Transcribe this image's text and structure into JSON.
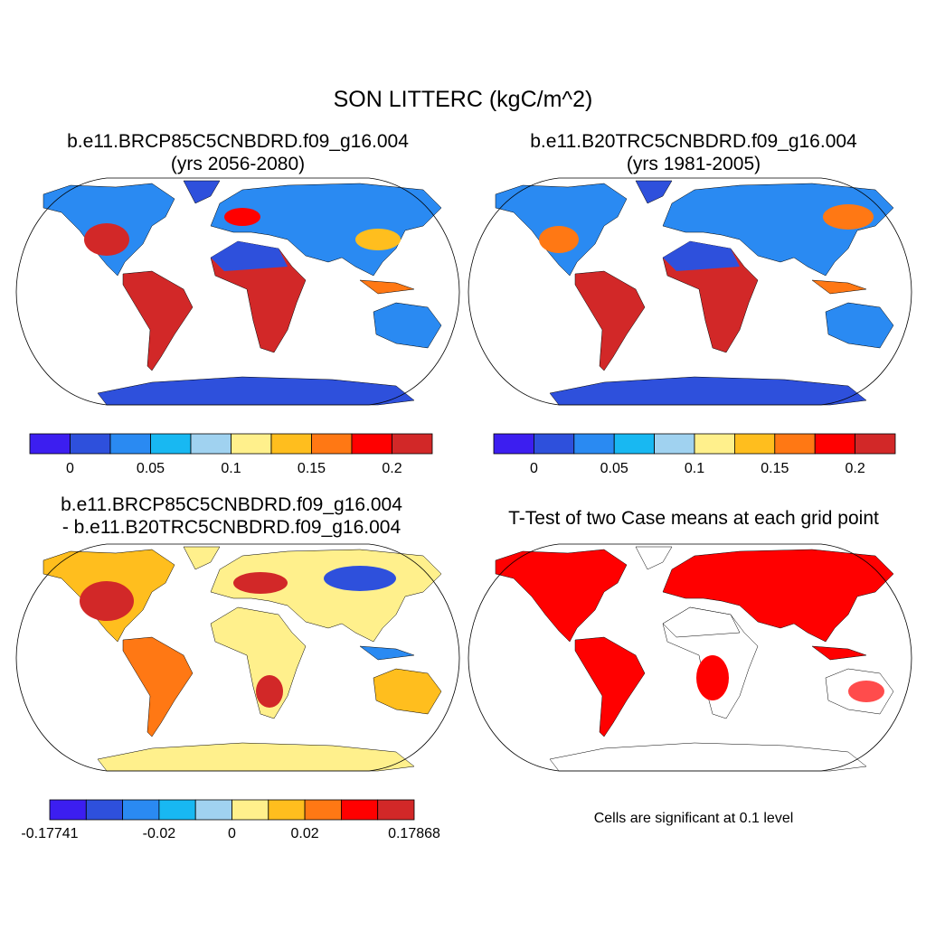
{
  "title": "SON LITTERC (kgC/m^2)",
  "panels": [
    {
      "title": [
        "b.e11.BRCP85C5CNBDRD.f09_g16.004",
        "(yrs 2056-2080)"
      ],
      "colorbar": {
        "colors": [
          "#3c1ef0",
          "#2e50dc",
          "#2a8af2",
          "#18b8f2",
          "#a0d2f0",
          "#fff08c",
          "#ffbe1e",
          "#ff7814",
          "#ff0000",
          "#d22828"
        ],
        "levels": [
          -0.025,
          0,
          0.025,
          0.05,
          0.075,
          0.1,
          0.125,
          0.15,
          0.175,
          0.2,
          0.225
        ],
        "ticks": [
          0,
          0.05,
          0.1,
          0.15,
          0.2
        ]
      }
    },
    {
      "title": [
        "b.e11.B20TRC5CNBDRD.f09_g16.004",
        "(yrs 1981-2005)"
      ],
      "colorbar": {
        "colors": [
          "#3c1ef0",
          "#2e50dc",
          "#2a8af2",
          "#18b8f2",
          "#a0d2f0",
          "#fff08c",
          "#ffbe1e",
          "#ff7814",
          "#ff0000",
          "#d22828"
        ],
        "levels": [
          -0.025,
          0,
          0.025,
          0.05,
          0.075,
          0.1,
          0.125,
          0.15,
          0.175,
          0.2,
          0.225
        ],
        "ticks": [
          0,
          0.05,
          0.1,
          0.15,
          0.2
        ]
      }
    },
    {
      "title": [
        "b.e11.BRCP85C5CNBDRD.f09_g16.004",
        "- b.e11.B20TRC5CNBDRD.f09_g16.004"
      ],
      "colorbar": {
        "colors": [
          "#3c1ef0",
          "#2e50dc",
          "#2a8af2",
          "#18b8f2",
          "#a0d2f0",
          "#fff08c",
          "#ffbe1e",
          "#ff7814",
          "#ff0000",
          "#d22828"
        ],
        "levels": [
          -0.17741,
          -0.04,
          -0.03,
          -0.02,
          -0.01,
          0,
          0.01,
          0.02,
          0.03,
          0.04,
          0.17868
        ],
        "ticks": [
          -0.17741,
          -0.02,
          0,
          0.02,
          0.17868
        ]
      }
    },
    {
      "title": [
        "T-Test of two Case means at each grid point"
      ],
      "note": "Cells are significant at 0.1 level"
    }
  ]
}
